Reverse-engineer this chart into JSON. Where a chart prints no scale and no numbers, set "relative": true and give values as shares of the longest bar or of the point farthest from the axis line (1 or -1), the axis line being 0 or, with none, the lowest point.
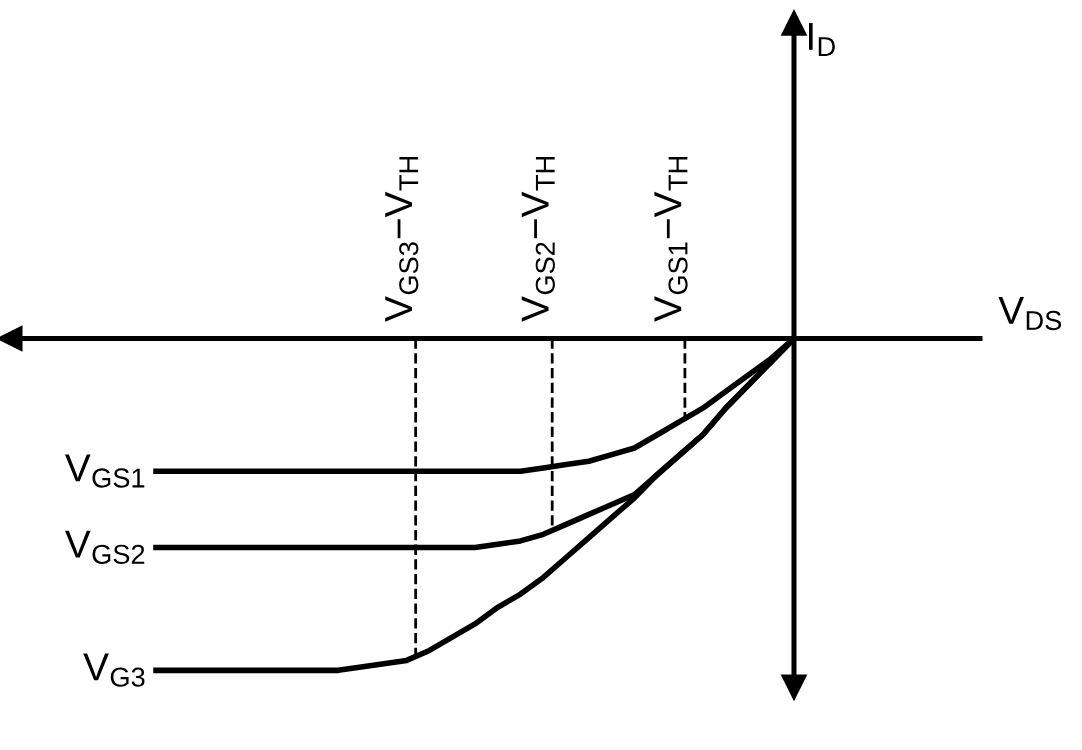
{
  "chart_data": {
    "type": "line",
    "relative": true,
    "xlabel": "V$_{DS}$",
    "categories": [
      null,
      null,
      null,
      null,
      null,
      null,
      null,
      null,
      null,
      null,
      null,
      null,
      null,
      null,
      null,
      null,
      null,
      null,
      null,
      null,
      null,
      null,
      null,
      null,
      null,
      null,
      null,
      null,
      null
    ],
    "series": [
      {
        "name": "V$_{GS1}$",
        "color": "#000000",
        "values": [
          -0.4,
          -0.4,
          -0.4,
          -0.4,
          -0.4,
          -0.4,
          -0.4,
          -0.4,
          -0.4,
          -0.4,
          -0.4,
          -0.4,
          -0.4,
          -0.4,
          -0.4,
          -0.4,
          -0.4,
          -0.39,
          -0.38,
          -0.37,
          -0.35,
          -0.33,
          -0.29,
          -0.25,
          -0.21,
          -0.16,
          -0.11,
          -0.06,
          0
        ]
      },
      {
        "name": "V$_{GS2}$",
        "color": "#000000",
        "values": [
          -0.63,
          -0.63,
          -0.63,
          -0.63,
          -0.63,
          -0.63,
          -0.63,
          -0.63,
          -0.63,
          -0.63,
          -0.63,
          -0.63,
          -0.63,
          -0.63,
          -0.63,
          -0.62,
          -0.61,
          -0.59,
          -0.56,
          -0.53,
          -0.5,
          -0.47,
          -0.41,
          -0.35,
          -0.29,
          -0.21,
          -0.14,
          -0.07,
          0
        ]
      },
      {
        "name": "V$_{G3}$",
        "color": "#000000",
        "values": [
          -1.0,
          -1.0,
          -1.0,
          -1.0,
          -1.0,
          -1.0,
          -1.0,
          -1.0,
          -1.0,
          -0.99,
          -0.98,
          -0.97,
          -0.94,
          -0.9,
          -0.86,
          -0.81,
          -0.77,
          -0.72,
          -0.66,
          -0.6,
          -0.54,
          -0.48,
          -0.41,
          -0.35,
          -0.29,
          -0.21,
          -0.14,
          -0.07,
          0
        ]
      }
    ],
    "annotations": [
      "V$_{GS3}$−V$_{TH}$",
      "V$_{GS2}$−V$_{TH}$",
      "V$_{GS1}$−V$_{TH}$",
      "I$_{D}$"
    ],
    "line_style": "solid",
    "marker": "none",
    "legend": false
  }
}
